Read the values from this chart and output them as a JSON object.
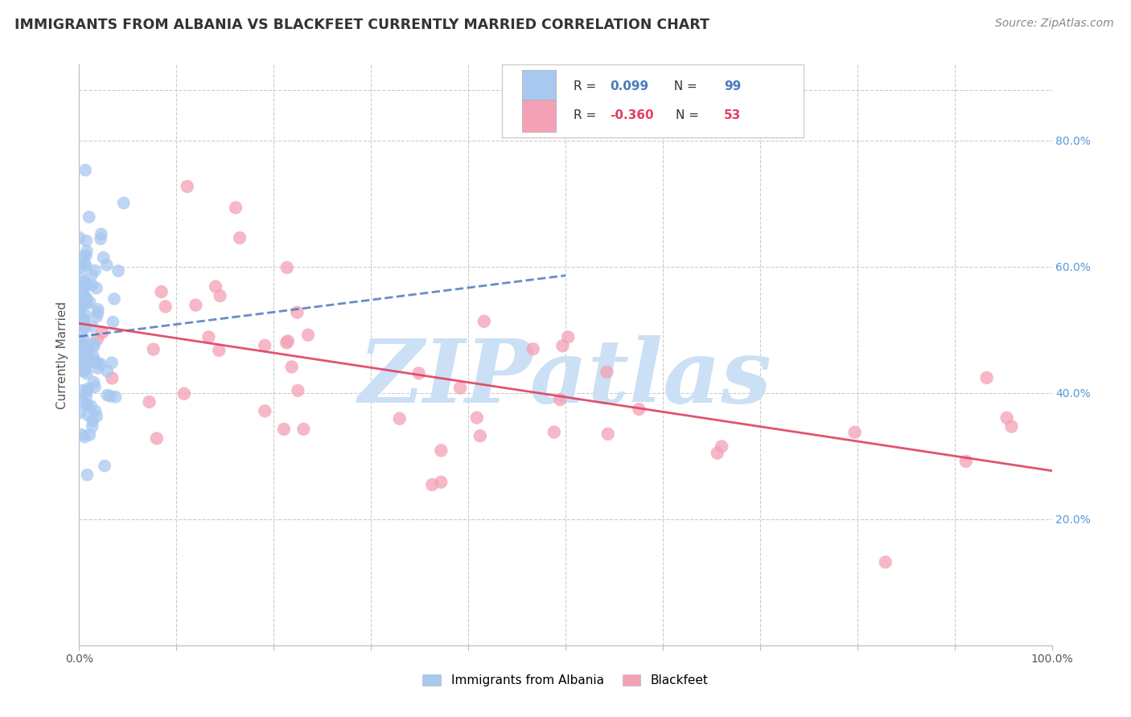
{
  "title": "IMMIGRANTS FROM ALBANIA VS BLACKFEET CURRENTLY MARRIED CORRELATION CHART",
  "source": "Source: ZipAtlas.com",
  "ylabel": "Currently Married",
  "xlim": [
    0.0,
    1.0
  ],
  "ylim": [
    0.0,
    0.92
  ],
  "yticks": [
    0.2,
    0.4,
    0.6,
    0.8
  ],
  "ytick_labels": [
    "20.0%",
    "40.0%",
    "60.0%",
    "80.0%"
  ],
  "watermark": "ZIPatlas",
  "blue_color": "#a8c8f0",
  "pink_color": "#f4a0b5",
  "blue_line_color": "#4a7abf",
  "pink_line_color": "#e04060",
  "blue_r": 0.099,
  "blue_n": 99,
  "pink_r": -0.36,
  "pink_n": 53,
  "background_color": "#ffffff",
  "grid_color": "#cccccc",
  "title_color": "#333333",
  "watermark_color": "#cce0f5",
  "right_tick_color": "#5599dd"
}
